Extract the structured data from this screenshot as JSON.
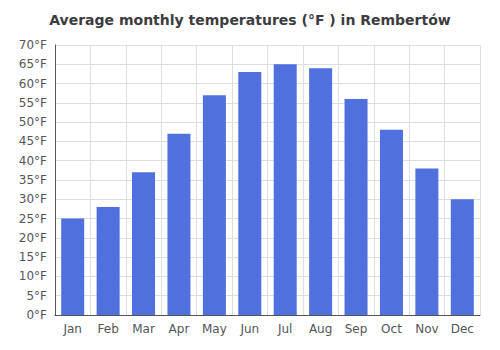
{
  "chart_data": {
    "type": "bar",
    "title": "Average monthly temperatures (°F ) in Rembertów",
    "categories": [
      "Jan",
      "Feb",
      "Mar",
      "Apr",
      "May",
      "Jun",
      "Jul",
      "Aug",
      "Sep",
      "Oct",
      "Nov",
      "Dec"
    ],
    "values": [
      25,
      28,
      37,
      47,
      57,
      63,
      65,
      64,
      56,
      48,
      38,
      30
    ],
    "ylim": [
      0,
      70
    ],
    "yticks": [
      {
        "value": 0,
        "label": "0°F"
      },
      {
        "value": 5,
        "label": "5°F"
      },
      {
        "value": 10,
        "label": "10°F"
      },
      {
        "value": 15,
        "label": "15°F"
      },
      {
        "value": 20,
        "label": "20°F"
      },
      {
        "value": 25,
        "label": "25°F"
      },
      {
        "value": 30,
        "label": "30°F"
      },
      {
        "value": 35,
        "label": "35°F"
      },
      {
        "value": 40,
        "label": "40°F"
      },
      {
        "value": 45,
        "label": "45°F"
      },
      {
        "value": 50,
        "label": "50°F"
      },
      {
        "value": 55,
        "label": "55°F"
      },
      {
        "value": 60,
        "label": "60°F"
      },
      {
        "value": 65,
        "label": "65°F"
      },
      {
        "value": 70,
        "label": "70°F"
      }
    ],
    "grid": true
  }
}
